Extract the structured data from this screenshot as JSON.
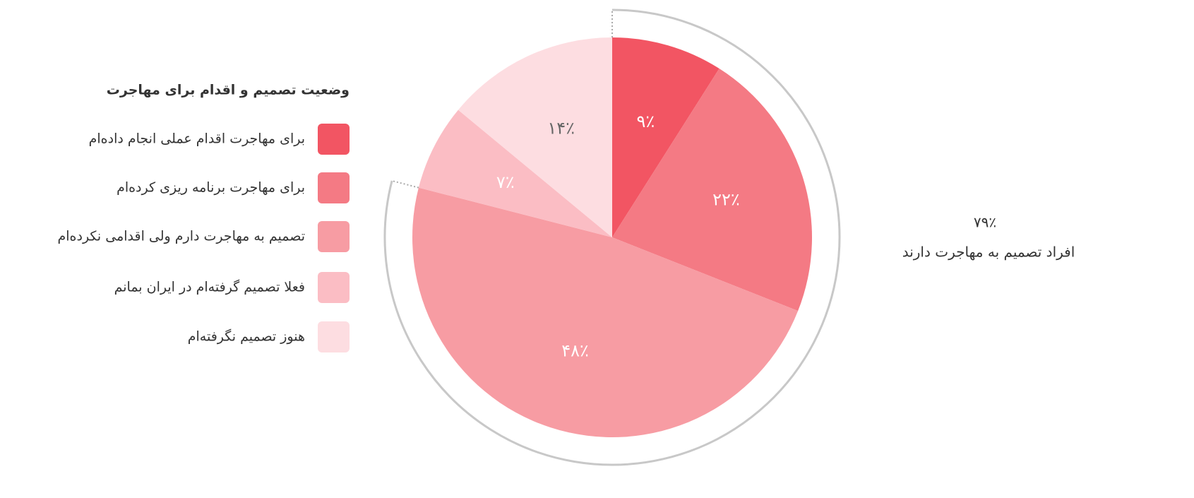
{
  "chart_data": {
    "type": "pie",
    "legend_title": "وضعیت تصمیم و اقدام برای مهاجرت",
    "categories": [
      "برای مهاجرت اقدام عملی انجام داده‌ام",
      "برای مهاجرت برنامه ریزی کرده‌ام",
      "تصمیم به مهاجرت دارم ولی اقدامی نکرده‌ام",
      "فعلا تصمیم گرفته‌ام در ایران بمانم",
      "هنوز تصمیم نگرفته‌ام"
    ],
    "values": [
      9,
      22,
      48,
      7,
      14
    ],
    "value_labels": [
      "۹٪",
      "۲۲٪",
      "۴۸٪",
      "۷٪",
      "۱۴٪"
    ],
    "colors": [
      "#f25563",
      "#f47a84",
      "#f79ca3",
      "#fbbdc4",
      "#fddde1"
    ],
    "annotation_value": 79,
    "annotation_label": "۷۹٪",
    "annotation_text": "افراد تصمیم به مهاجرت دارند"
  }
}
